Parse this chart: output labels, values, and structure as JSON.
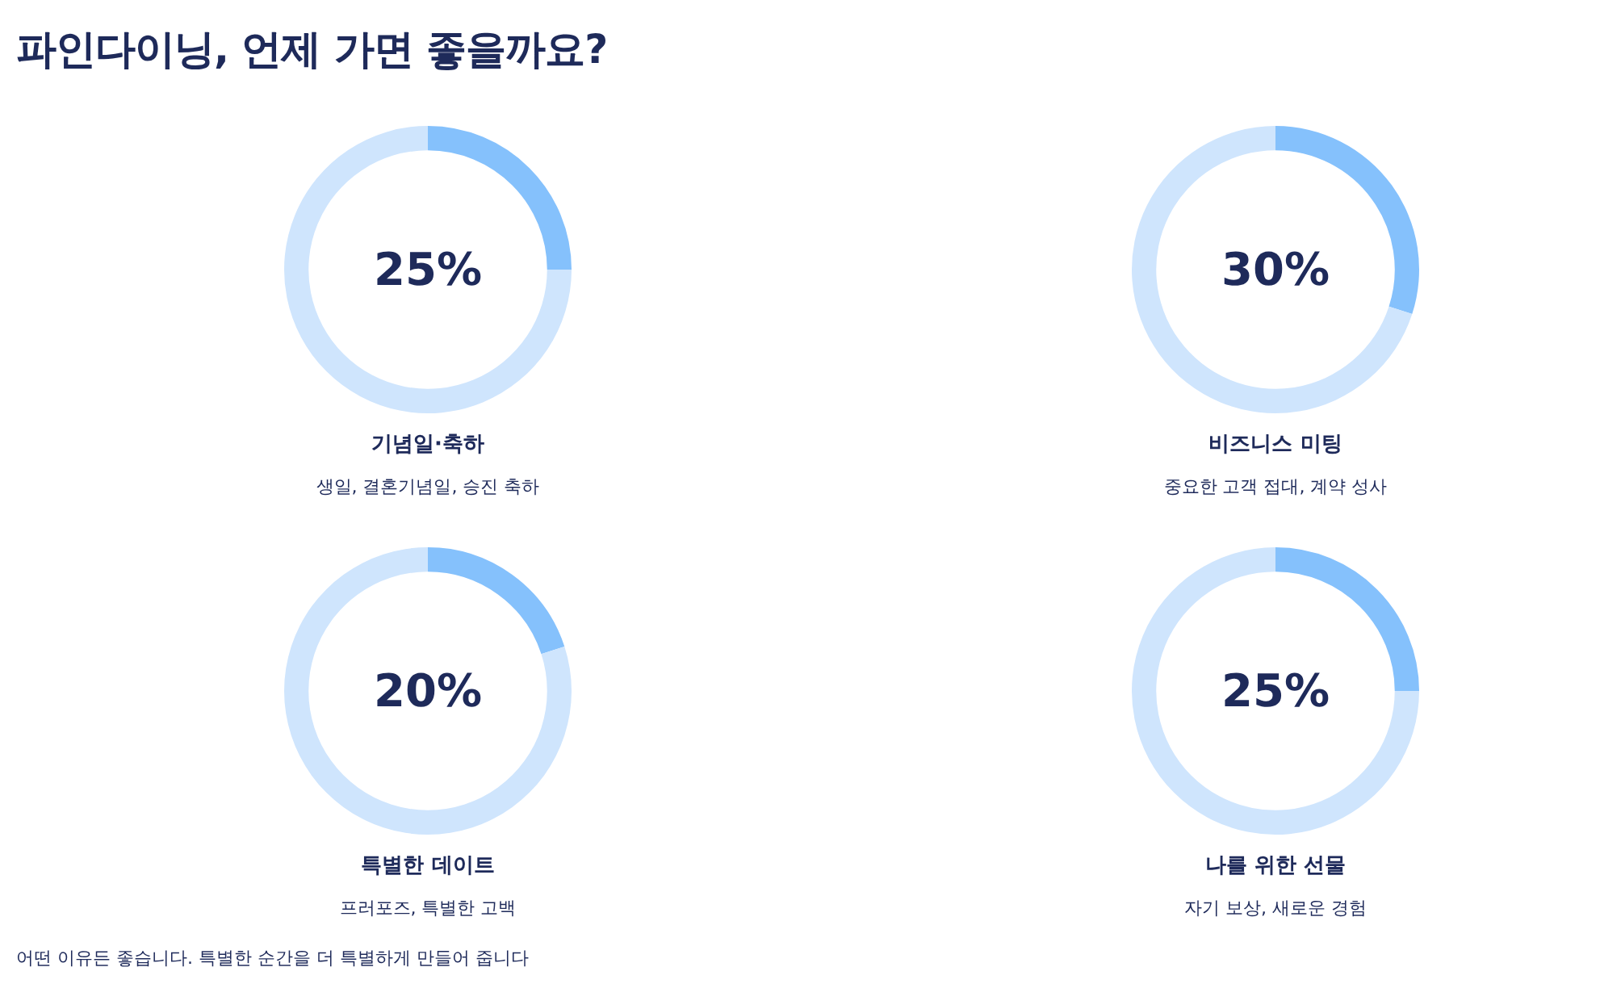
{
  "chart_data": [
    {
      "type": "other",
      "title": "파인다이닝, 언제 가면 좋을까요?",
      "annotations": [
        "어떤 이유든 좋습니다. 특별한 순간을 더 특별하게 만들어 줍니다"
      ]
    },
    {
      "type": "donut",
      "title": "기념일·축하",
      "subtitle": "생일, 결혼기념일, 승진 축하",
      "categories": [
        null,
        null
      ],
      "values": [
        25,
        75
      ],
      "colors": [
        "#85c1fc",
        "#cfe5fd"
      ],
      "value_labels": [
        "25%",
        null
      ]
    },
    {
      "type": "donut",
      "title": "비즈니스 미팅",
      "subtitle": "중요한 고객 접대, 계약 성사",
      "categories": [
        null,
        null
      ],
      "values": [
        30,
        70
      ],
      "colors": [
        "#85c1fc",
        "#cfe5fd"
      ],
      "value_labels": [
        "30%",
        null
      ]
    },
    {
      "type": "donut",
      "title": "특별한 데이트",
      "subtitle": "프러포즈, 특별한 고백",
      "categories": [
        null,
        null
      ],
      "values": [
        20,
        80
      ],
      "colors": [
        "#85c1fc",
        "#cfe5fd"
      ],
      "value_labels": [
        "20%",
        null
      ]
    },
    {
      "type": "donut",
      "title": "나를 위한 선물",
      "subtitle": "자기 보상, 새로운 경험",
      "categories": [
        null,
        null
      ],
      "values": [
        25,
        75
      ],
      "colors": [
        "#85c1fc",
        "#cfe5fd"
      ],
      "value_labels": [
        "25%",
        null
      ]
    }
  ]
}
